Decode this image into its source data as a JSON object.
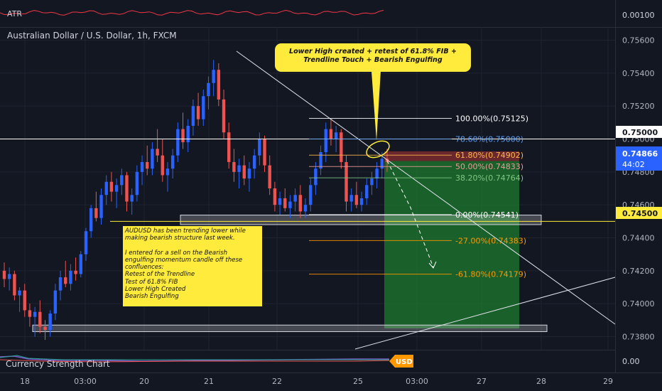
{
  "chart_data": {
    "type": "candlestick",
    "title": "Australian Dollar / U.S. Dollar, 1h, FXCM",
    "symbol": "AUDUSD",
    "timeframe": "1h",
    "source": "FXCM",
    "ylim": [
      0.7372,
      0.7568
    ],
    "price_ticks": [
      "0.75600",
      "0.75400",
      "0.75200",
      "0.75000",
      "0.74800",
      "0.74600",
      "0.74400",
      "0.74200",
      "0.74000",
      "0.73800"
    ],
    "time_ticks": [
      "18",
      "03:00",
      "20",
      "21",
      "22",
      "25",
      "03:00",
      "27",
      "28",
      "29"
    ],
    "last_price": "0.74866",
    "countdown": "44:02",
    "level_label_upper": "0.75000",
    "level_label_lower": "0.74500",
    "horizontal_lines": [
      0.75,
      0.745
    ],
    "fib_levels": [
      {
        "label": "100.00%(0.75125)",
        "price": 0.75125,
        "color": "#ffffff"
      },
      {
        "label": "78.60%(0.75000)",
        "price": 0.75,
        "color": "#5b9cf6"
      },
      {
        "label": "61.80%(0.74902)",
        "price": 0.74902,
        "color": "#ffb74d"
      },
      {
        "label": "50.00%(0.74833)",
        "price": 0.74833,
        "color": "#ef9a9a"
      },
      {
        "label": "38.20%(0.74764)",
        "price": 0.74764,
        "color": "#81c784"
      },
      {
        "label": "0.00%(0.74541)",
        "price": 0.74541,
        "color": "#ffffff"
      },
      {
        "label": "-27.00%(0.74383)",
        "price": 0.74383,
        "color": "#ff9800"
      },
      {
        "label": "-61.80%(0.74179)",
        "price": 0.74179,
        "color": "#ff9800"
      }
    ],
    "trade": {
      "entry": 0.74866,
      "stop": 0.74925,
      "target": 0.7385
    },
    "support_zones": [
      [
        0.7448,
        0.74538
      ],
      [
        0.7383,
        0.7387
      ]
    ],
    "candles": [
      [
        0.742,
        0.7425,
        0.741,
        0.7415
      ],
      [
        0.7415,
        0.7422,
        0.7408,
        0.7418
      ],
      [
        0.7418,
        0.742,
        0.7402,
        0.7405
      ],
      [
        0.7405,
        0.741,
        0.7395,
        0.7408
      ],
      [
        0.7408,
        0.7412,
        0.7392,
        0.7396
      ],
      [
        0.7396,
        0.74,
        0.7386,
        0.7392
      ],
      [
        0.7392,
        0.7398,
        0.738,
        0.7395
      ],
      [
        0.7395,
        0.7402,
        0.7382,
        0.7386
      ],
      [
        0.7386,
        0.739,
        0.7378,
        0.7384
      ],
      [
        0.7384,
        0.7396,
        0.738,
        0.7394
      ],
      [
        0.7394,
        0.7412,
        0.739,
        0.7408
      ],
      [
        0.7408,
        0.742,
        0.7402,
        0.7416
      ],
      [
        0.7416,
        0.7426,
        0.741,
        0.7412
      ],
      [
        0.7412,
        0.7424,
        0.7408,
        0.742
      ],
      [
        0.742,
        0.7428,
        0.7414,
        0.7418
      ],
      [
        0.7418,
        0.7432,
        0.7416,
        0.743
      ],
      [
        0.743,
        0.7446,
        0.7426,
        0.7444
      ],
      [
        0.7444,
        0.746,
        0.744,
        0.7458
      ],
      [
        0.7458,
        0.7468,
        0.745,
        0.7452
      ],
      [
        0.7452,
        0.747,
        0.7448,
        0.7466
      ],
      [
        0.7466,
        0.7478,
        0.746,
        0.7474
      ],
      [
        0.7474,
        0.748,
        0.7462,
        0.7468
      ],
      [
        0.7468,
        0.7476,
        0.7458,
        0.7472
      ],
      [
        0.7472,
        0.7482,
        0.7466,
        0.7478
      ],
      [
        0.7478,
        0.748,
        0.7456,
        0.7462
      ],
      [
        0.7462,
        0.747,
        0.7454,
        0.7466
      ],
      [
        0.7466,
        0.7484,
        0.7462,
        0.748
      ],
      [
        0.748,
        0.749,
        0.7472,
        0.7486
      ],
      [
        0.7486,
        0.7496,
        0.7478,
        0.7482
      ],
      [
        0.7482,
        0.7498,
        0.7478,
        0.7494
      ],
      [
        0.7494,
        0.7506,
        0.7486,
        0.749
      ],
      [
        0.749,
        0.75,
        0.7474,
        0.7478
      ],
      [
        0.7478,
        0.7486,
        0.7468,
        0.7482
      ],
      [
        0.7482,
        0.7494,
        0.7476,
        0.749
      ],
      [
        0.749,
        0.751,
        0.7486,
        0.7506
      ],
      [
        0.7506,
        0.7516,
        0.7494,
        0.7498
      ],
      [
        0.7498,
        0.7512,
        0.7492,
        0.7508
      ],
      [
        0.7508,
        0.7524,
        0.7502,
        0.752
      ],
      [
        0.752,
        0.7528,
        0.7508,
        0.7512
      ],
      [
        0.7512,
        0.753,
        0.7508,
        0.7526
      ],
      [
        0.7526,
        0.7538,
        0.7518,
        0.7534
      ],
      [
        0.7534,
        0.7548,
        0.7526,
        0.7542
      ],
      [
        0.7542,
        0.7546,
        0.752,
        0.7524
      ],
      [
        0.7524,
        0.753,
        0.75,
        0.7504
      ],
      [
        0.7504,
        0.751,
        0.7482,
        0.7486
      ],
      [
        0.7486,
        0.7494,
        0.7474,
        0.748
      ],
      [
        0.748,
        0.7488,
        0.747,
        0.7484
      ],
      [
        0.7484,
        0.749,
        0.7472,
        0.7476
      ],
      [
        0.7476,
        0.7486,
        0.7468,
        0.7482
      ],
      [
        0.7482,
        0.7494,
        0.7476,
        0.749
      ],
      [
        0.749,
        0.7504,
        0.7484,
        0.75
      ],
      [
        0.75,
        0.7502,
        0.748,
        0.7484
      ],
      [
        0.7484,
        0.749,
        0.7466,
        0.747
      ],
      [
        0.747,
        0.7474,
        0.7456,
        0.746
      ],
      [
        0.746,
        0.7468,
        0.7454,
        0.7464
      ],
      [
        0.7464,
        0.747,
        0.7456,
        0.7458
      ],
      [
        0.7458,
        0.7466,
        0.7452,
        0.7462
      ],
      [
        0.7462,
        0.747,
        0.7456,
        0.7466
      ],
      [
        0.7466,
        0.7472,
        0.7452,
        0.7456
      ],
      [
        0.7456,
        0.7464,
        0.7452,
        0.746
      ],
      [
        0.746,
        0.7476,
        0.7456,
        0.7472
      ],
      [
        0.7472,
        0.7486,
        0.7466,
        0.7482
      ],
      [
        0.7482,
        0.7496,
        0.7478,
        0.7492
      ],
      [
        0.7492,
        0.751,
        0.7486,
        0.7506
      ],
      [
        0.7506,
        0.7512,
        0.7496,
        0.75
      ],
      [
        0.75,
        0.7508,
        0.7492,
        0.7504
      ],
      [
        0.7504,
        0.7506,
        0.7482,
        0.7486
      ],
      [
        0.7486,
        0.749,
        0.7456,
        0.7462
      ],
      [
        0.7462,
        0.747,
        0.7456,
        0.7466
      ],
      [
        0.7466,
        0.7474,
        0.7458,
        0.746
      ],
      [
        0.746,
        0.7468,
        0.7456,
        0.7464
      ],
      [
        0.7464,
        0.7476,
        0.746,
        0.7472
      ],
      [
        0.7472,
        0.748,
        0.7466,
        0.7476
      ],
      [
        0.7476,
        0.7486,
        0.747,
        0.7482
      ],
      [
        0.7482,
        0.7492,
        0.7476,
        0.7488
      ],
      [
        0.7488,
        0.7494,
        0.748,
        0.7486
      ]
    ]
  },
  "indicators": {
    "top_label": "ATR",
    "top_value": "0.00100",
    "bottom_label": "Currency Strength Chart",
    "bottom_value": "0.00",
    "bottom_badge": "USD"
  },
  "annotations": {
    "callout_line1": "Lower High created + retest of 61.8% FIB +",
    "callout_line2": "Trendline Touch + Bearish Engulfing",
    "note_lines": [
      "AUDUSD has been trending lower while",
      "making bearish structure last week.",
      "",
      "I entered for a sell on the Bearish",
      "engulfing momentum candle off these",
      "confluences:",
      "Retest of the Trendline",
      "Test of 61.8% FIB",
      "Lower High Created",
      "Bearish Engulfing"
    ]
  },
  "colors": {
    "background": "#131722",
    "bull": "#2962ff",
    "bear": "#ef5350",
    "target_zone": "#1e7a2e",
    "stop_zone": "#7a2a2e",
    "level_line": "#ffeb3b",
    "atr_line": "#f23645"
  }
}
